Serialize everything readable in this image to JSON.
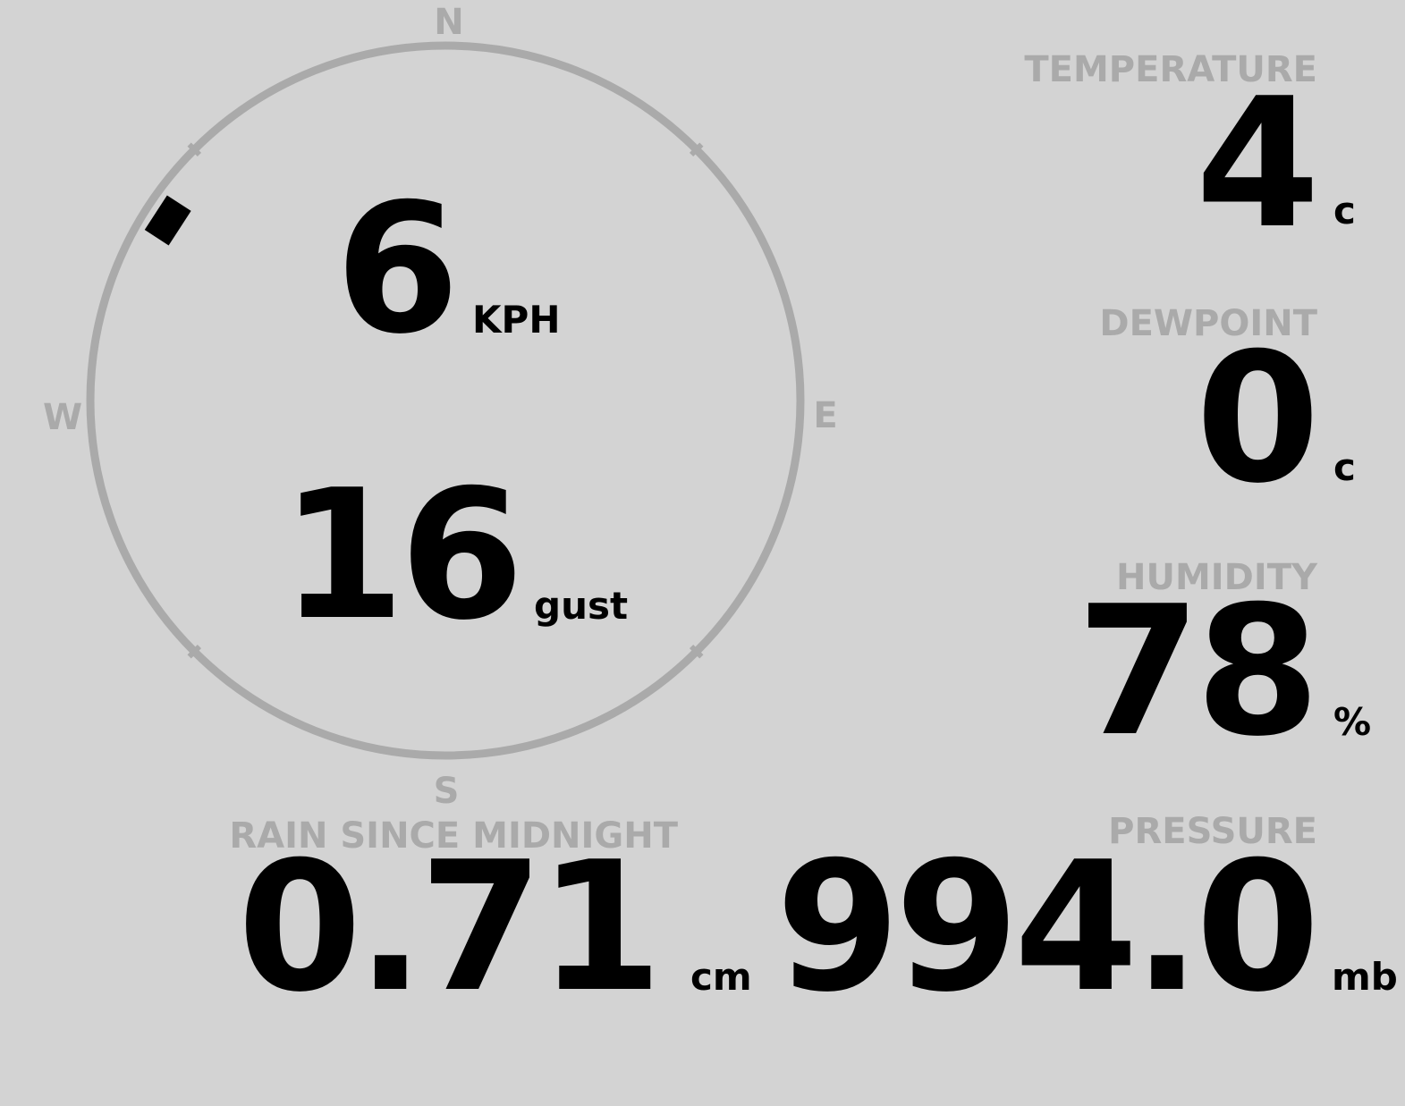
{
  "colors": {
    "background": "#d3d3d3",
    "label": "#aaaaaa",
    "value": "#000000"
  },
  "wind": {
    "compass": {
      "north": "N",
      "east": "E",
      "south": "S",
      "west": "W"
    },
    "direction_degrees": 303,
    "speed": "6",
    "speed_unit": "KPH",
    "gust": "16",
    "gust_unit": "gust"
  },
  "temperature": {
    "label": "TEMPERATURE",
    "value": "4",
    "unit": "c"
  },
  "dewpoint": {
    "label": "DEWPOINT",
    "value": "0",
    "unit": "c"
  },
  "humidity": {
    "label": "HUMIDITY",
    "value": "78",
    "unit": "%"
  },
  "rain": {
    "label": "RAIN SINCE MIDNIGHT",
    "value": "0.71",
    "unit": "cm"
  },
  "pressure": {
    "label": "PRESSURE",
    "value": "994.0",
    "unit": "mb"
  }
}
